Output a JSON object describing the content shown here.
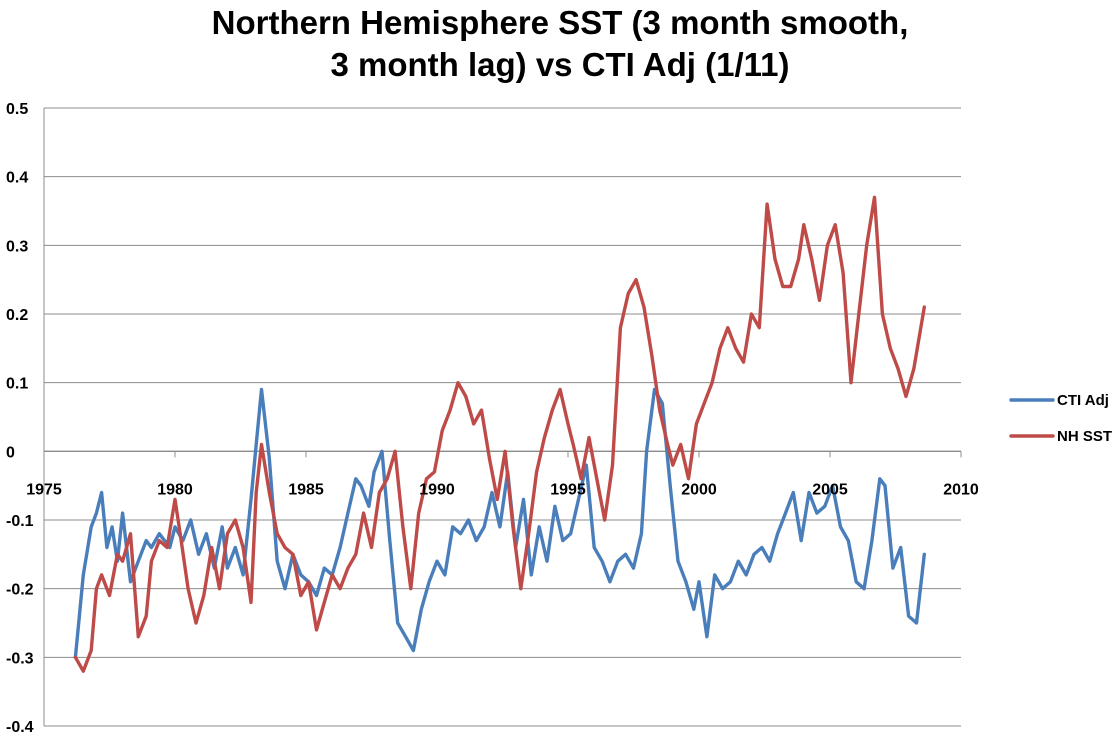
{
  "chart_data": {
    "type": "line",
    "title_lines": [
      "Northern Hemisphere SST (3 month smooth,",
      "3 month lag) vs CTI Adj (1/11)"
    ],
    "xlabel": "",
    "ylabel": "",
    "xlim": [
      1975,
      2010
    ],
    "ylim": [
      -0.4,
      0.5
    ],
    "x_ticks": [
      1975,
      1980,
      1985,
      1990,
      1995,
      2000,
      2005,
      2010
    ],
    "y_ticks": [
      0.5,
      0.4,
      0.3,
      0.2,
      0.1,
      0,
      -0.1,
      -0.2,
      -0.3,
      -0.4
    ],
    "grid": "horizontal",
    "legend_position": "right",
    "series": [
      {
        "name": "CTI Adj",
        "color": "#4a7ebb",
        "x": [
          1976.2,
          1976.5,
          1976.8,
          1977.0,
          1977.2,
          1977.4,
          1977.6,
          1977.8,
          1978.0,
          1978.3,
          1978.6,
          1978.9,
          1979.1,
          1979.4,
          1979.8,
          1980.0,
          1980.3,
          1980.6,
          1980.9,
          1981.2,
          1981.5,
          1981.8,
          1982.0,
          1982.3,
          1982.6,
          1982.9,
          1983.1,
          1983.3,
          1983.6,
          1983.9,
          1984.2,
          1984.5,
          1984.8,
          1985.1,
          1985.4,
          1985.7,
          1986.0,
          1986.3,
          1986.6,
          1986.9,
          1987.1,
          1987.4,
          1987.6,
          1987.9,
          1988.2,
          1988.5,
          1988.8,
          1989.1,
          1989.4,
          1989.7,
          1990.0,
          1990.3,
          1990.6,
          1990.9,
          1991.2,
          1991.5,
          1991.8,
          1992.1,
          1992.4,
          1992.7,
          1993.0,
          1993.3,
          1993.6,
          1993.9,
          1994.2,
          1994.5,
          1994.8,
          1995.1,
          1995.4,
          1995.7,
          1996.0,
          1996.3,
          1996.6,
          1996.9,
          1997.2,
          1997.5,
          1997.8,
          1998.0,
          1998.3,
          1998.6,
          1998.9,
          1999.2,
          1999.5,
          1999.8,
          2000.0,
          2000.3,
          2000.6,
          2000.9,
          2001.2,
          2001.5,
          2001.8,
          2002.1,
          2002.4,
          2002.7,
          2003.0,
          2003.3,
          2003.6,
          2003.9,
          2004.2,
          2004.5,
          2004.8,
          2005.1,
          2005.4,
          2005.7,
          2006.0,
          2006.3,
          2006.6,
          2006.9,
          2007.1,
          2007.4,
          2007.7,
          2008.0,
          2008.3,
          2008.6
        ],
        "values": [
          -0.3,
          -0.18,
          -0.11,
          -0.09,
          -0.06,
          -0.14,
          -0.11,
          -0.16,
          -0.09,
          -0.19,
          -0.16,
          -0.13,
          -0.14,
          -0.12,
          -0.14,
          -0.11,
          -0.13,
          -0.1,
          -0.15,
          -0.12,
          -0.17,
          -0.11,
          -0.17,
          -0.14,
          -0.18,
          -0.07,
          0.01,
          0.09,
          -0.01,
          -0.16,
          -0.2,
          -0.15,
          -0.18,
          -0.19,
          -0.21,
          -0.17,
          -0.18,
          -0.14,
          -0.09,
          -0.04,
          -0.05,
          -0.08,
          -0.03,
          0.0,
          -0.13,
          -0.25,
          -0.27,
          -0.29,
          -0.23,
          -0.19,
          -0.16,
          -0.18,
          -0.11,
          -0.12,
          -0.1,
          -0.13,
          -0.11,
          -0.06,
          -0.11,
          -0.03,
          -0.14,
          -0.07,
          -0.18,
          -0.11,
          -0.16,
          -0.08,
          -0.13,
          -0.12,
          -0.07,
          -0.02,
          -0.14,
          -0.16,
          -0.19,
          -0.16,
          -0.15,
          -0.17,
          -0.12,
          0.0,
          0.09,
          0.07,
          -0.05,
          -0.16,
          -0.19,
          -0.23,
          -0.19,
          -0.27,
          -0.18,
          -0.2,
          -0.19,
          -0.16,
          -0.18,
          -0.15,
          -0.14,
          -0.16,
          -0.12,
          -0.09,
          -0.06,
          -0.13,
          -0.06,
          -0.09,
          -0.08,
          -0.05,
          -0.11,
          -0.13,
          -0.19,
          -0.2,
          -0.13,
          -0.04,
          -0.05,
          -0.17,
          -0.14,
          -0.24,
          -0.25,
          -0.15
        ]
      },
      {
        "name": "NH SST",
        "color": "#be4b48",
        "x": [
          1976.2,
          1976.5,
          1976.8,
          1977.0,
          1977.2,
          1977.5,
          1977.8,
          1978.0,
          1978.3,
          1978.6,
          1978.9,
          1979.1,
          1979.4,
          1979.7,
          1980.0,
          1980.2,
          1980.5,
          1980.8,
          1981.1,
          1981.4,
          1981.7,
          1982.0,
          1982.3,
          1982.6,
          1982.9,
          1983.1,
          1983.3,
          1983.6,
          1983.9,
          1984.2,
          1984.5,
          1984.8,
          1985.1,
          1985.4,
          1985.7,
          1986.0,
          1986.3,
          1986.6,
          1986.9,
          1987.2,
          1987.5,
          1987.8,
          1988.1,
          1988.4,
          1988.7,
          1989.0,
          1989.3,
          1989.6,
          1989.9,
          1990.2,
          1990.5,
          1990.8,
          1991.1,
          1991.4,
          1991.7,
          1992.0,
          1992.3,
          1992.6,
          1992.9,
          1993.2,
          1993.5,
          1993.8,
          1994.1,
          1994.4,
          1994.7,
          1995.0,
          1995.2,
          1995.5,
          1995.8,
          1996.1,
          1996.4,
          1996.7,
          1997.0,
          1997.3,
          1997.6,
          1997.9,
          1998.2,
          1998.5,
          1998.8,
          1999.0,
          1999.3,
          1999.6,
          1999.9,
          2000.2,
          2000.5,
          2000.8,
          2001.1,
          2001.4,
          2001.7,
          2002.0,
          2002.3,
          2002.6,
          2002.9,
          2003.2,
          2003.5,
          2003.8,
          2004.0,
          2004.3,
          2004.6,
          2004.9,
          2005.2,
          2005.5,
          2005.8,
          2006.1,
          2006.4,
          2006.7,
          2007.0,
          2007.3,
          2007.6,
          2007.9,
          2008.2,
          2008.6
        ],
        "values": [
          -0.3,
          -0.32,
          -0.29,
          -0.2,
          -0.18,
          -0.21,
          -0.15,
          -0.16,
          -0.12,
          -0.27,
          -0.24,
          -0.16,
          -0.13,
          -0.14,
          -0.07,
          -0.12,
          -0.2,
          -0.25,
          -0.21,
          -0.14,
          -0.2,
          -0.12,
          -0.1,
          -0.14,
          -0.22,
          -0.06,
          0.01,
          -0.06,
          -0.12,
          -0.14,
          -0.15,
          -0.21,
          -0.19,
          -0.26,
          -0.22,
          -0.18,
          -0.2,
          -0.17,
          -0.15,
          -0.09,
          -0.14,
          -0.06,
          -0.04,
          0.0,
          -0.11,
          -0.2,
          -0.09,
          -0.04,
          -0.03,
          0.03,
          0.06,
          0.1,
          0.08,
          0.04,
          0.06,
          -0.01,
          -0.07,
          0.0,
          -0.11,
          -0.2,
          -0.12,
          -0.03,
          0.02,
          0.06,
          0.09,
          0.04,
          0.01,
          -0.04,
          0.02,
          -0.04,
          -0.1,
          -0.02,
          0.18,
          0.23,
          0.25,
          0.21,
          0.14,
          0.06,
          0.01,
          -0.02,
          0.01,
          -0.04,
          0.04,
          0.07,
          0.1,
          0.15,
          0.18,
          0.15,
          0.13,
          0.2,
          0.18,
          0.36,
          0.28,
          0.24,
          0.24,
          0.28,
          0.33,
          0.28,
          0.22,
          0.3,
          0.33,
          0.26,
          0.1,
          0.2,
          0.3,
          0.37,
          0.2,
          0.15,
          0.12,
          0.08,
          0.12,
          0.21
        ]
      }
    ]
  }
}
